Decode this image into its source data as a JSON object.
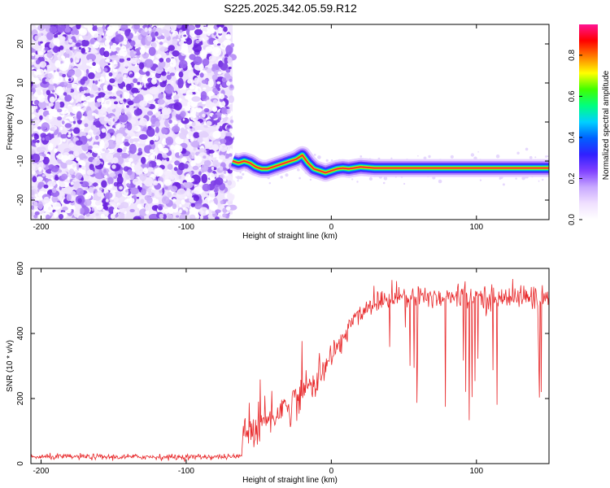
{
  "title": "S225.2025.342.05.59.R12",
  "chart_data": [
    {
      "type": "heatmap",
      "xlabel": "Height of straight line (km)",
      "ylabel": "Frequency (Hz)",
      "xlim": [
        -207,
        150
      ],
      "ylim": [
        -25,
        25
      ],
      "xticks": [
        -200,
        -100,
        0,
        100
      ],
      "yticks": [
        -20,
        -10,
        0,
        10,
        20
      ],
      "colorbar": {
        "label": "Normalized spectral amplitude",
        "range": [
          0,
          0.95
        ],
        "ticks": [
          "0.0",
          "0.2",
          "0.4",
          "0.6",
          "0.8"
        ],
        "colormap": [
          "#ffffff",
          "#f0e0ff",
          "#c8a8ff",
          "#8040ff",
          "#3020ff",
          "#0060ff",
          "#00d0ff",
          "#00ff80",
          "#40ff00",
          "#ffff00",
          "#ff8000",
          "#ff0000",
          "#ff1493"
        ]
      },
      "noise_region": {
        "x_range": [
          -207,
          -68
        ],
        "y_range": [
          -25,
          25
        ],
        "level": 0.1
      },
      "ridge": {
        "x": [
          -68,
          -64,
          -60,
          -56,
          -52,
          -48,
          -44,
          -40,
          -36,
          -32,
          -28,
          -24,
          -20,
          -16,
          -12,
          -8,
          -4,
          0,
          4,
          8,
          12,
          20,
          30,
          40,
          50,
          60,
          70,
          80,
          90,
          100,
          110,
          120,
          130,
          140,
          150
        ],
        "y": [
          -10,
          -10.5,
          -10,
          -10.5,
          -11.5,
          -12,
          -12,
          -11.5,
          -11,
          -10.5,
          -10,
          -9.5,
          -8.5,
          -10.5,
          -12,
          -12.5,
          -13,
          -12.5,
          -12,
          -11.8,
          -12,
          -11.5,
          -11.8,
          -11.8,
          -11.8,
          -11.8,
          -11.8,
          -11.8,
          -11.8,
          -11.8,
          -11.8,
          -11.8,
          -11.8,
          -11.8,
          -11.8
        ],
        "peak": [
          0.7,
          0.75,
          0.8,
          0.82,
          0.85,
          0.85,
          0.88,
          0.88,
          0.88,
          0.9,
          0.9,
          0.9,
          0.9,
          0.9,
          0.9,
          0.9,
          0.92,
          0.92,
          0.92,
          0.93,
          0.93,
          0.93,
          0.93,
          0.93,
          0.93,
          0.93,
          0.93,
          0.93,
          0.93,
          0.94,
          0.94,
          0.94,
          0.94,
          0.94,
          0.94
        ]
      }
    },
    {
      "type": "line",
      "xlabel": "Height of straight line (km)",
      "ylabel": "SNR (10 * v/v)",
      "xlim": [
        -207,
        150
      ],
      "ylim": [
        0,
        600
      ],
      "xticks": [
        -200,
        -100,
        0,
        100
      ],
      "yticks": [
        0,
        200,
        400,
        600
      ],
      "color": "#e8282a",
      "series": [
        {
          "x": [
            -207,
            -190,
            -170,
            -150,
            -130,
            -110,
            -90,
            -70,
            -62,
            -60,
            -58,
            -56,
            -54,
            -52,
            -50,
            -48,
            -46,
            -44,
            -42,
            -40,
            -38,
            -36,
            -34,
            -32,
            -30,
            -28,
            -26,
            -24,
            -22,
            -20,
            -18,
            -16,
            -14,
            -12,
            -10,
            -8,
            -6,
            -4,
            -2,
            0,
            2,
            4,
            6,
            8,
            10,
            12,
            14,
            16,
            18,
            20,
            22,
            24,
            26,
            28,
            30,
            35,
            40,
            45,
            50,
            55,
            60,
            65,
            70,
            75,
            80,
            85,
            90,
            95,
            100,
            105,
            110,
            115,
            120,
            125,
            130,
            135,
            140,
            145,
            150
          ],
          "values": [
            20,
            21,
            21,
            20,
            21,
            20,
            21,
            21,
            22,
            120,
            90,
            110,
            100,
            105,
            120,
            118,
            125,
            130,
            140,
            155,
            150,
            160,
            175,
            170,
            180,
            175,
            190,
            200,
            215,
            220,
            225,
            235,
            250,
            240,
            265,
            270,
            285,
            300,
            310,
            320,
            345,
            355,
            370,
            385,
            405,
            420,
            435,
            445,
            455,
            462,
            470,
            480,
            485,
            490,
            500,
            505,
            510,
            515,
            515,
            510,
            515,
            510,
            515,
            512,
            515,
            510,
            515,
            510,
            515,
            512,
            510,
            512,
            510,
            515,
            512,
            510,
            515,
            512,
            510
          ],
          "noise": [
            8,
            8,
            8,
            8,
            8,
            8,
            8,
            8,
            8,
            100,
            60,
            60,
            60,
            60,
            60,
            55,
            55,
            55,
            55,
            55,
            55,
            50,
            50,
            50,
            50,
            50,
            50,
            50,
            50,
            50,
            45,
            45,
            45,
            45,
            45,
            45,
            45,
            40,
            40,
            40,
            40,
            40,
            40,
            40,
            40,
            35,
            35,
            35,
            35,
            35,
            35,
            35,
            35,
            35,
            35,
            35,
            35,
            35,
            35,
            35,
            35,
            35,
            35,
            35,
            35,
            35,
            35,
            35,
            35,
            35,
            35,
            35,
            35,
            35,
            35,
            35,
            35,
            35,
            35
          ]
        }
      ]
    }
  ]
}
